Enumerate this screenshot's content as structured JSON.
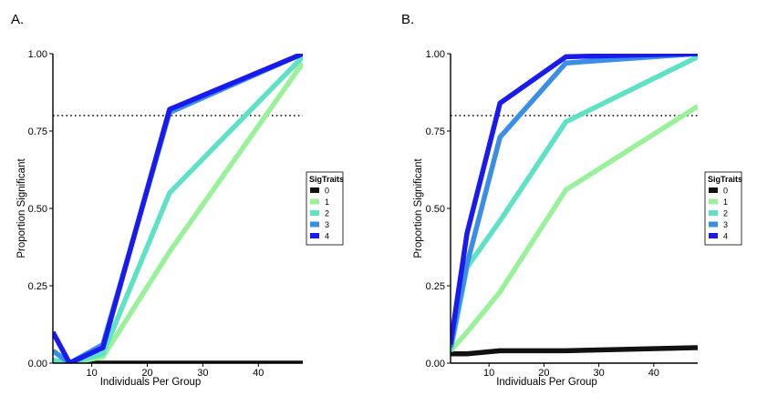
{
  "chart_data": [
    {
      "type": "line",
      "panel_label": "A.",
      "xlabel": "Individuals Per Group",
      "ylabel": "Proportion Significant",
      "xlim": [
        3,
        48
      ],
      "ylim": [
        0,
        1
      ],
      "xticks": [
        10,
        20,
        30,
        40
      ],
      "yticks": [
        0,
        0.25,
        0.5,
        0.75,
        1
      ],
      "ytick_labels": [
        "0.00",
        "0.25",
        "0.50",
        "0.75",
        "1.00"
      ],
      "reference_line": {
        "y": 0.8,
        "style": "dotted"
      },
      "legend": {
        "title": "SigTraits",
        "position": "right"
      },
      "series": [
        {
          "name": "0",
          "color": "#111111",
          "x": [
            3,
            6,
            12,
            24,
            48
          ],
          "y": [
            0,
            0,
            0,
            0,
            0
          ]
        },
        {
          "name": "1",
          "color": "#99f299",
          "x": [
            3,
            6,
            12,
            24,
            48
          ],
          "y": [
            0,
            0,
            0.02,
            0.36,
            0.97
          ]
        },
        {
          "name": "2",
          "color": "#5de2c5",
          "x": [
            3,
            6,
            12,
            24,
            48
          ],
          "y": [
            0.01,
            0,
            0.03,
            0.55,
            0.99
          ]
        },
        {
          "name": "3",
          "color": "#3a8ee8",
          "x": [
            3,
            6,
            12,
            24,
            48
          ],
          "y": [
            0.04,
            0,
            0.06,
            0.81,
            1.0
          ]
        },
        {
          "name": "4",
          "color": "#1a1aee",
          "x": [
            3,
            6,
            12,
            24,
            48
          ],
          "y": [
            0.1,
            0,
            0.05,
            0.82,
            1.0
          ]
        }
      ]
    },
    {
      "type": "line",
      "panel_label": "B.",
      "xlabel": "Individuals Per Group",
      "ylabel": "Proportion Significant",
      "xlim": [
        3,
        48
      ],
      "ylim": [
        0,
        1
      ],
      "xticks": [
        10,
        20,
        30,
        40
      ],
      "yticks": [
        0,
        0.25,
        0.5,
        0.75,
        1
      ],
      "ytick_labels": [
        "0.00",
        "0.25",
        "0.50",
        "0.75",
        "1.00"
      ],
      "reference_line": {
        "y": 0.8,
        "style": "dotted"
      },
      "legend": {
        "title": "SigTraits",
        "position": "right"
      },
      "series": [
        {
          "name": "0",
          "color": "#111111",
          "x": [
            3,
            6,
            12,
            24,
            48
          ],
          "y": [
            0.03,
            0.03,
            0.04,
            0.04,
            0.05
          ]
        },
        {
          "name": "1",
          "color": "#99f299",
          "x": [
            3,
            6,
            12,
            24,
            48
          ],
          "y": [
            0.04,
            0.1,
            0.23,
            0.56,
            0.83
          ]
        },
        {
          "name": "2",
          "color": "#5de2c5",
          "x": [
            3,
            6,
            12,
            24,
            48
          ],
          "y": [
            0.04,
            0.31,
            0.46,
            0.78,
            0.99
          ]
        },
        {
          "name": "3",
          "color": "#3a8ee8",
          "x": [
            3,
            6,
            12,
            24,
            48
          ],
          "y": [
            0.05,
            0.32,
            0.73,
            0.97,
            1.0
          ]
        },
        {
          "name": "4",
          "color": "#1a1aee",
          "x": [
            3,
            6,
            12,
            24,
            48
          ],
          "y": [
            0.06,
            0.42,
            0.84,
            0.99,
            1.0
          ]
        }
      ]
    }
  ]
}
